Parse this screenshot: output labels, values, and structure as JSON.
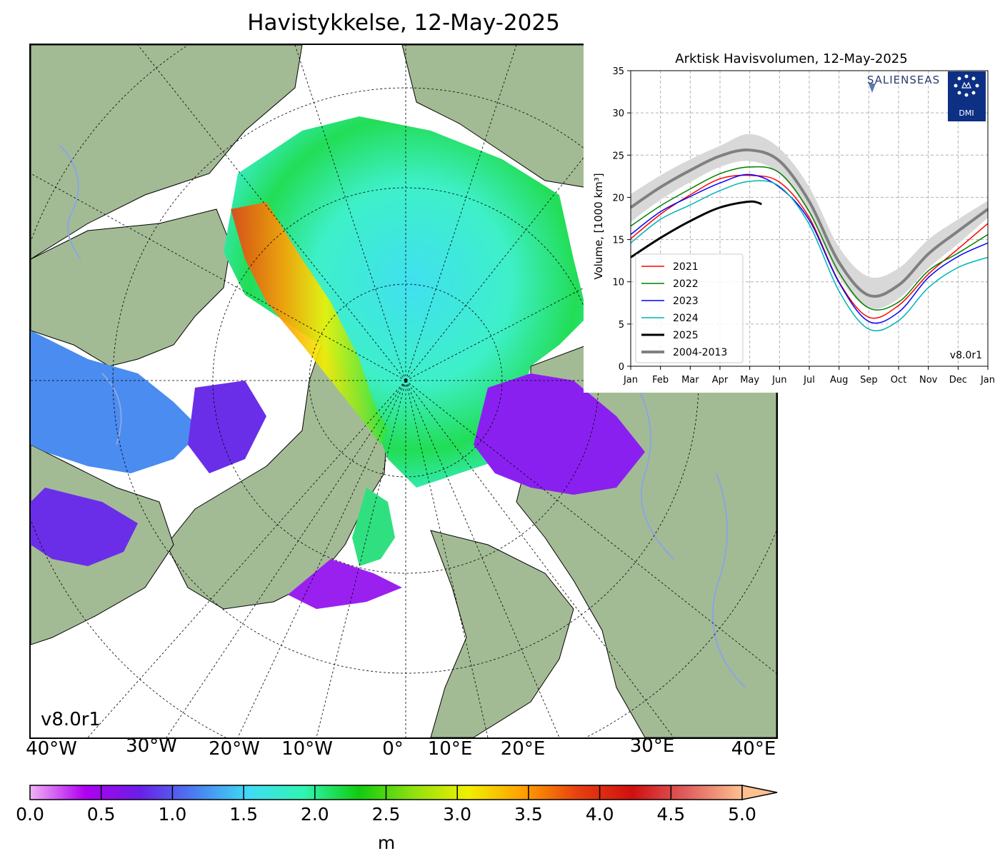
{
  "map": {
    "title": "Havistykkelse, 12-May-2025",
    "version": "v8.0r1",
    "longitude_labels": [
      "40°W",
      "30°W",
      "20°W",
      "10°W",
      "0°",
      "10°E",
      "20°E",
      "30°E",
      "40°E"
    ],
    "colors": {
      "land": "#a3bb95",
      "coast": "#000000",
      "rivers": "#8aa6e0",
      "open_water": "#ffffff"
    }
  },
  "colorbar": {
    "ticks": [
      "0.0",
      "0.5",
      "1.0",
      "1.5",
      "2.0",
      "2.5",
      "3.0",
      "3.5",
      "4.0",
      "4.5",
      "5.0"
    ],
    "unit": "m",
    "extend": "max",
    "colors": [
      "#f2b3f5",
      "#b000f0",
      "#6a1ee8",
      "#4a7ef0",
      "#40dcf5",
      "#30f5b0",
      "#10cc10",
      "#90e010",
      "#f0f000",
      "#ffa000",
      "#e84010",
      "#d01010",
      "#e06060",
      "#ffc090"
    ]
  },
  "chart_data": {
    "type": "line",
    "title": "Arktisk Havisvolumen, 12-May-2025",
    "ylabel": "Volume, [1000 km³]",
    "ylim": [
      0,
      35
    ],
    "yticks": [
      "0",
      "5",
      "10",
      "15",
      "20",
      "25",
      "30",
      "35"
    ],
    "xticks": [
      "Jan",
      "Feb",
      "Mar",
      "Apr",
      "May",
      "Jun",
      "Jul",
      "Aug",
      "Sep",
      "Oct",
      "Nov",
      "Dec",
      "Jan"
    ],
    "x_month": [
      0,
      1,
      2,
      3,
      4,
      5,
      6,
      7,
      8,
      9,
      10,
      11,
      12
    ],
    "grid": true,
    "legend_position": "bottom-left",
    "version": "v8.0r1",
    "logos": [
      "SALIENSEAS",
      "DMI"
    ],
    "band": {
      "name": "2004-2013",
      "color": "#d8d8d8",
      "mean": [
        18.8,
        21.2,
        23.2,
        24.9,
        25.6,
        24.3,
        19.5,
        12.3,
        8.4,
        9.6,
        13.3,
        16.0,
        18.6
      ],
      "upper": [
        20.4,
        22.6,
        24.5,
        26.1,
        27.5,
        25.8,
        21.2,
        14.1,
        10.6,
        11.6,
        15.0,
        17.4,
        19.6
      ],
      "lower": [
        17.1,
        19.7,
        21.8,
        23.6,
        24.3,
        22.8,
        18.0,
        10.6,
        6.9,
        8.0,
        11.6,
        14.5,
        17.6
      ]
    },
    "series": [
      {
        "name": "2021",
        "color": "#ff0000",
        "width": 1.5,
        "values": [
          15.1,
          18.0,
          20.3,
          22.2,
          22.6,
          21.8,
          17.6,
          10.0,
          5.8,
          7.2,
          10.9,
          13.9,
          16.9
        ]
      },
      {
        "name": "2022",
        "color": "#008000",
        "width": 1.5,
        "values": [
          16.6,
          19.0,
          21.0,
          22.8,
          23.6,
          22.9,
          18.3,
          11.1,
          6.9,
          7.6,
          11.3,
          13.4,
          15.6
        ]
      },
      {
        "name": "2023",
        "color": "#0000ff",
        "width": 1.5,
        "values": [
          15.6,
          18.3,
          20.1,
          21.7,
          22.7,
          21.2,
          17.3,
          9.9,
          5.3,
          6.4,
          10.5,
          13.0,
          14.6
        ]
      },
      {
        "name": "2024",
        "color": "#00b4b4",
        "width": 1.5,
        "values": [
          14.6,
          17.4,
          19.1,
          20.8,
          21.9,
          21.3,
          16.8,
          8.9,
          4.4,
          5.4,
          9.3,
          11.7,
          12.9
        ]
      },
      {
        "name": "2025",
        "color": "#000000",
        "width": 3,
        "values": [
          12.9,
          15.2,
          17.2,
          18.8,
          19.5,
          19.2,
          null,
          null,
          null,
          null,
          null,
          null,
          null
        ]
      }
    ],
    "legend_entries": [
      "2021",
      "2022",
      "2023",
      "2024",
      "2025",
      "2004-2013"
    ]
  }
}
